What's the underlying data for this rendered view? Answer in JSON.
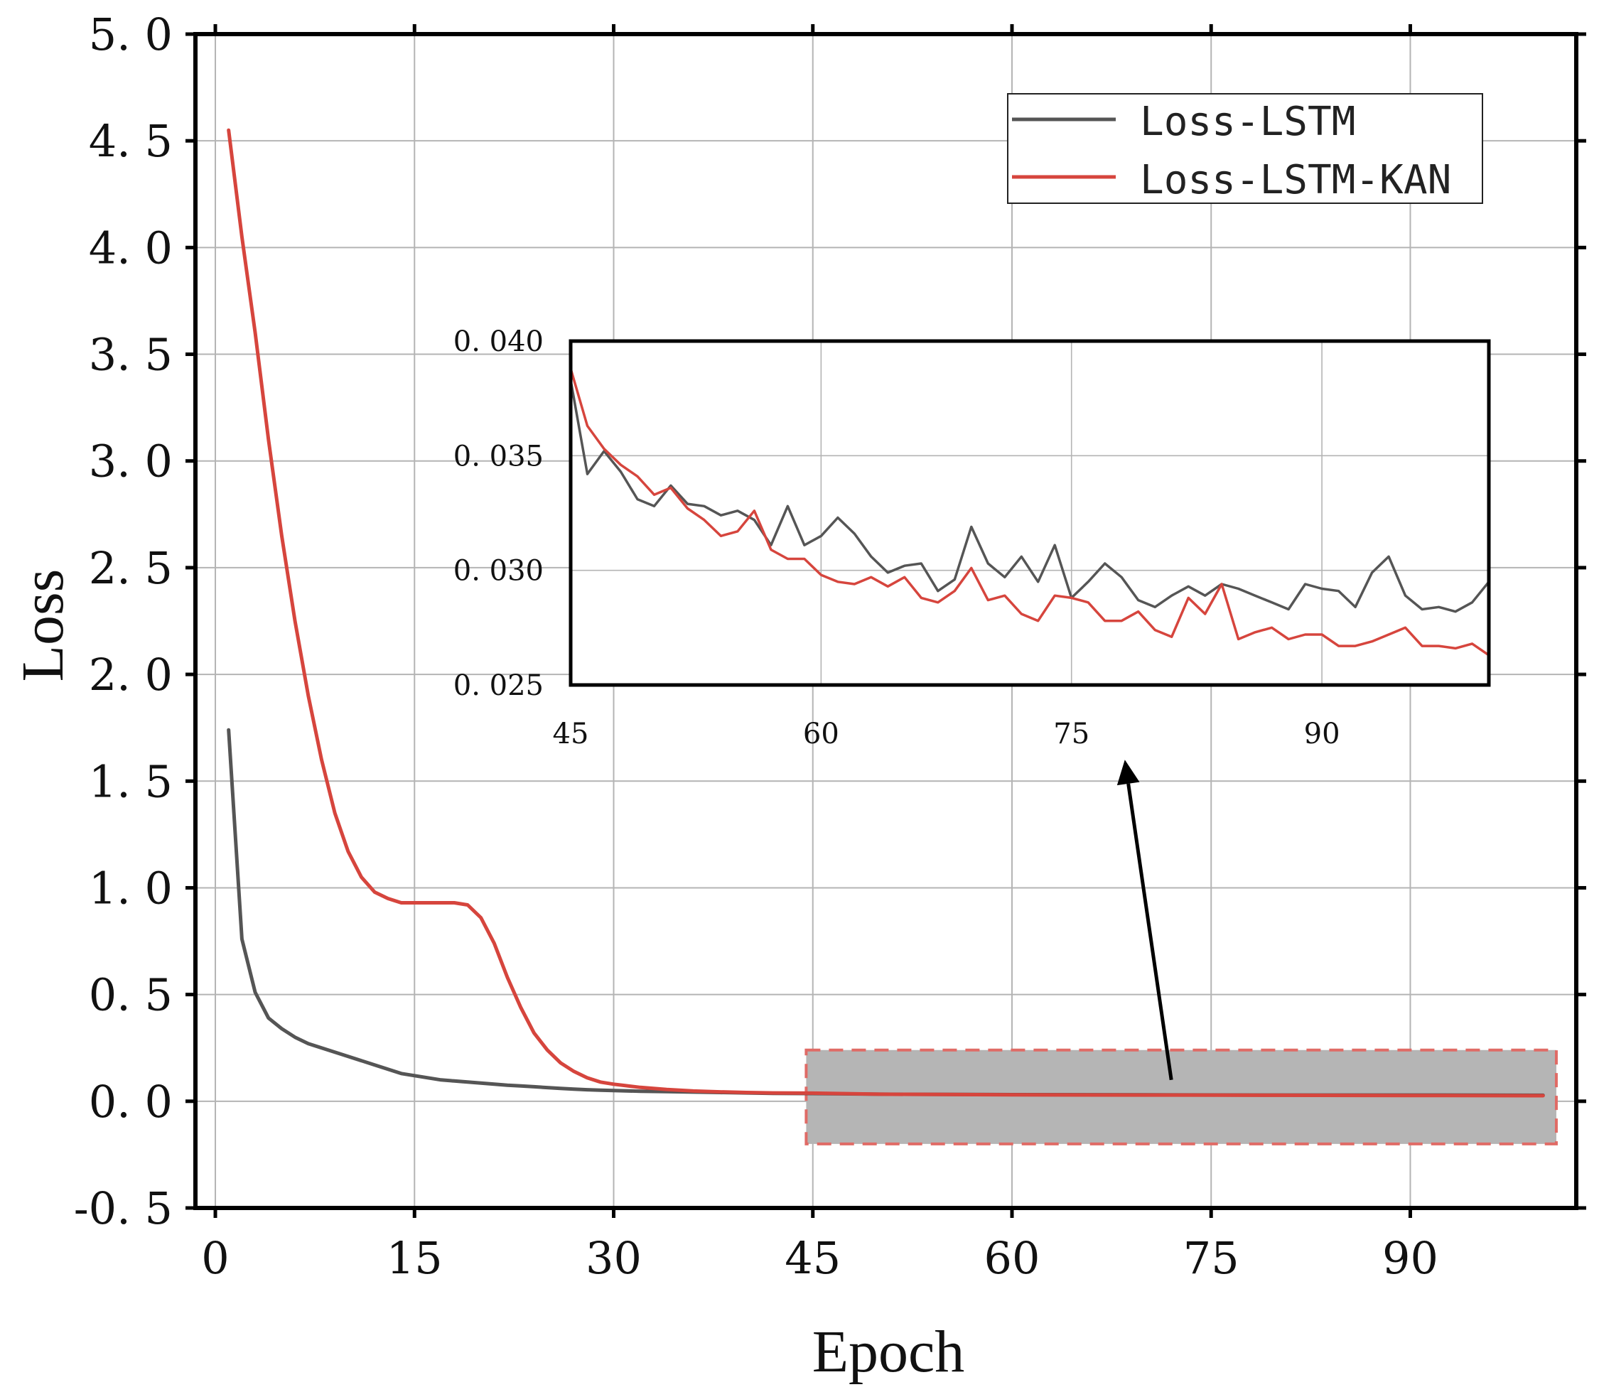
{
  "chart_data": [
    {
      "id": "main",
      "type": "line",
      "xlabel": "Epoch",
      "ylabel": "Loss",
      "xlim": [
        -1.5,
        102.5
      ],
      "ylim": [
        -0.5,
        5.0
      ],
      "xticks": [
        0,
        15,
        30,
        45,
        60,
        75,
        90
      ],
      "xtick_labels": [
        "0",
        "15",
        "30",
        "45",
        "60",
        "75",
        "90"
      ],
      "yticks": [
        -0.5,
        0.0,
        0.5,
        1.0,
        1.5,
        2.0,
        2.5,
        3.0,
        3.5,
        4.0,
        4.5,
        5.0
      ],
      "ytick_labels": [
        "-0. 5",
        "0. 0",
        "0. 5",
        "1. 0",
        "1. 5",
        "2. 0",
        "2. 5",
        "3. 0",
        "3. 5",
        "4. 0",
        "4. 5",
        "5. 0"
      ],
      "grid": true,
      "legend": {
        "location": "top-right",
        "entries": [
          {
            "label": "Loss-LSTM",
            "color": "#555555"
          },
          {
            "label": "Loss-LSTM-KAN",
            "color": "#d6453d"
          }
        ]
      },
      "series": [
        {
          "name": "Loss-LSTM",
          "color": "#555555",
          "x": [
            1,
            2,
            3,
            4,
            5,
            6,
            7,
            8,
            9,
            10,
            11,
            12,
            13,
            14,
            15,
            16,
            17,
            18,
            19,
            20,
            21,
            22,
            23,
            24,
            25,
            26,
            27,
            28,
            29,
            30,
            32,
            34,
            36,
            38,
            40,
            42,
            45,
            50,
            60,
            70,
            80,
            90,
            100
          ],
          "values": [
            1.74,
            0.76,
            0.51,
            0.39,
            0.34,
            0.3,
            0.27,
            0.25,
            0.23,
            0.21,
            0.19,
            0.17,
            0.15,
            0.13,
            0.12,
            0.11,
            0.1,
            0.095,
            0.09,
            0.085,
            0.08,
            0.075,
            0.072,
            0.068,
            0.064,
            0.06,
            0.057,
            0.054,
            0.052,
            0.05,
            0.047,
            0.045,
            0.043,
            0.041,
            0.039,
            0.037,
            0.036,
            0.033,
            0.031,
            0.03,
            0.029,
            0.029,
            0.028
          ]
        },
        {
          "name": "Loss-LSTM-KAN",
          "color": "#d6453d",
          "x": [
            1,
            2,
            3,
            4,
            5,
            6,
            7,
            8,
            9,
            10,
            11,
            12,
            13,
            14,
            15,
            16,
            17,
            18,
            19,
            20,
            21,
            22,
            23,
            24,
            25,
            26,
            27,
            28,
            29,
            30,
            32,
            34,
            36,
            38,
            40,
            42,
            45,
            50,
            60,
            70,
            80,
            90,
            100
          ],
          "values": [
            4.55,
            4.05,
            3.6,
            3.1,
            2.65,
            2.25,
            1.9,
            1.6,
            1.35,
            1.17,
            1.05,
            0.98,
            0.95,
            0.93,
            0.93,
            0.93,
            0.93,
            0.93,
            0.92,
            0.86,
            0.74,
            0.58,
            0.44,
            0.32,
            0.24,
            0.18,
            0.14,
            0.11,
            0.09,
            0.08,
            0.065,
            0.055,
            0.048,
            0.044,
            0.041,
            0.039,
            0.038,
            0.033,
            0.03,
            0.029,
            0.028,
            0.027,
            0.026
          ]
        }
      ],
      "annotations": [
        {
          "type": "highlight-region",
          "x_range": [
            44.5,
            101
          ],
          "y_range": [
            -0.2,
            0.24
          ],
          "fill": "#b5b5b5",
          "edge_color": "#e06b66"
        },
        {
          "type": "arrow",
          "from": [
            72,
            0.1
          ],
          "to": [
            68.5,
            1.6
          ],
          "color": "#000000"
        }
      ]
    },
    {
      "id": "inset",
      "type": "line",
      "xlim": [
        45,
        100
      ],
      "ylim": [
        0.025,
        0.04
      ],
      "xticks": [
        45,
        60,
        75,
        90
      ],
      "xtick_labels": [
        "45",
        "60",
        "75",
        "90"
      ],
      "yticks": [
        0.025,
        0.03,
        0.035,
        0.04
      ],
      "ytick_labels": [
        "0. 025",
        "0. 030",
        "0. 035",
        "0. 040"
      ],
      "grid": true,
      "series": [
        {
          "name": "Loss-LSTM",
          "color": "#555555",
          "x": [
            45,
            46,
            47,
            48,
            49,
            50,
            51,
            52,
            53,
            54,
            55,
            56,
            57,
            58,
            59,
            60,
            61,
            62,
            63,
            64,
            65,
            66,
            67,
            68,
            69,
            70,
            71,
            72,
            73,
            74,
            75,
            76,
            77,
            78,
            79,
            80,
            81,
            82,
            83,
            84,
            85,
            86,
            87,
            88,
            89,
            90,
            91,
            92,
            93,
            94,
            95,
            96,
            97,
            98,
            99,
            100
          ],
          "values": [
            0.0383,
            0.0342,
            0.0352,
            0.0343,
            0.0331,
            0.0328,
            0.0337,
            0.0329,
            0.0328,
            0.0324,
            0.0326,
            0.0322,
            0.0311,
            0.0328,
            0.0311,
            0.0315,
            0.0323,
            0.0316,
            0.0306,
            0.0299,
            0.0302,
            0.0303,
            0.0291,
            0.0296,
            0.0319,
            0.0303,
            0.0297,
            0.0306,
            0.0295,
            0.0311,
            0.0288,
            0.0295,
            0.0303,
            0.0297,
            0.0287,
            0.0284,
            0.0289,
            0.0293,
            0.0289,
            0.0294,
            0.0292,
            0.0289,
            0.0286,
            0.0283,
            0.0294,
            0.0292,
            0.0291,
            0.0284,
            0.0299,
            0.0306,
            0.0289,
            0.0283,
            0.0284,
            0.0282,
            0.0286,
            0.0295
          ]
        },
        {
          "name": "Loss-LSTM-KAN",
          "color": "#d6453d",
          "x": [
            45,
            46,
            47,
            48,
            49,
            50,
            51,
            52,
            53,
            54,
            55,
            56,
            57,
            58,
            59,
            60,
            61,
            62,
            63,
            64,
            65,
            66,
            67,
            68,
            69,
            70,
            71,
            72,
            73,
            74,
            75,
            76,
            77,
            78,
            79,
            80,
            81,
            82,
            83,
            84,
            85,
            86,
            87,
            88,
            89,
            90,
            91,
            92,
            93,
            94,
            95,
            96,
            97,
            98,
            99,
            100
          ],
          "values": [
            0.0388,
            0.0363,
            0.0353,
            0.0346,
            0.0341,
            0.0333,
            0.0336,
            0.0327,
            0.0322,
            0.0315,
            0.0317,
            0.0326,
            0.0309,
            0.0305,
            0.0305,
            0.0298,
            0.0295,
            0.0294,
            0.0297,
            0.0293,
            0.0297,
            0.0288,
            0.0286,
            0.0291,
            0.0301,
            0.0287,
            0.0289,
            0.0281,
            0.0278,
            0.0289,
            0.0288,
            0.0286,
            0.0278,
            0.0278,
            0.0282,
            0.0274,
            0.0271,
            0.0288,
            0.0281,
            0.0294,
            0.027,
            0.0273,
            0.0275,
            0.027,
            0.0272,
            0.0272,
            0.0267,
            0.0267,
            0.0269,
            0.0272,
            0.0275,
            0.0267,
            0.0267,
            0.0266,
            0.0268,
            0.0263
          ]
        }
      ]
    }
  ]
}
